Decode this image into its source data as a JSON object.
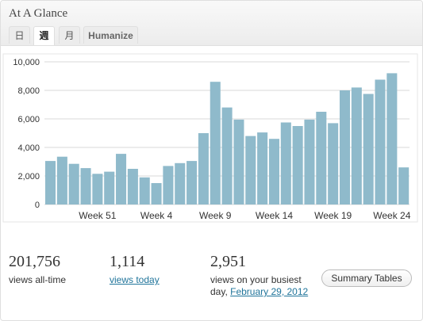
{
  "widget": {
    "title": "At A Glance"
  },
  "tabs": [
    {
      "label": "日",
      "active": false
    },
    {
      "label": "週",
      "active": true
    },
    {
      "label": "月",
      "active": false
    },
    {
      "label": "Humanize",
      "active": false
    }
  ],
  "colors": {
    "bar": "#8fbacb",
    "grid": "#d8d8d8",
    "link": "#21759b"
  },
  "stats": {
    "all_time": {
      "value": "201,756",
      "label": "views all-time"
    },
    "today": {
      "value": "1,114",
      "label": "views today"
    },
    "busiest": {
      "value": "2,951",
      "label_line1": "views on your busiest",
      "label_prefix": "day, ",
      "date_link": "February 29, 2012"
    }
  },
  "summary_button": "Summary Tables",
  "chart_data": {
    "type": "bar",
    "title": "",
    "xlabel": "",
    "ylabel": "",
    "ylim": [
      0,
      10000
    ],
    "yticks": [
      "0",
      "2,000",
      "4,000",
      "6,000",
      "8,000",
      "10,000"
    ],
    "ytick_values": [
      0,
      2000,
      4000,
      6000,
      8000,
      10000
    ],
    "xtick_labels": [
      {
        "label": "Week 51",
        "index": 4
      },
      {
        "label": "Week 4",
        "index": 9
      },
      {
        "label": "Week 9",
        "index": 14
      },
      {
        "label": "Week 14",
        "index": 19
      },
      {
        "label": "Week 19",
        "index": 24
      },
      {
        "label": "Week 24",
        "index": 29
      }
    ],
    "grid": true,
    "values": [
      3050,
      3350,
      2850,
      2550,
      2150,
      2300,
      3550,
      2500,
      1900,
      1500,
      2700,
      2900,
      3050,
      5000,
      8600,
      6800,
      5950,
      4800,
      5050,
      4600,
      5750,
      5500,
      5950,
      6500,
      5700,
      8000,
      8200,
      7750,
      8750,
      9200,
      2600
    ]
  }
}
